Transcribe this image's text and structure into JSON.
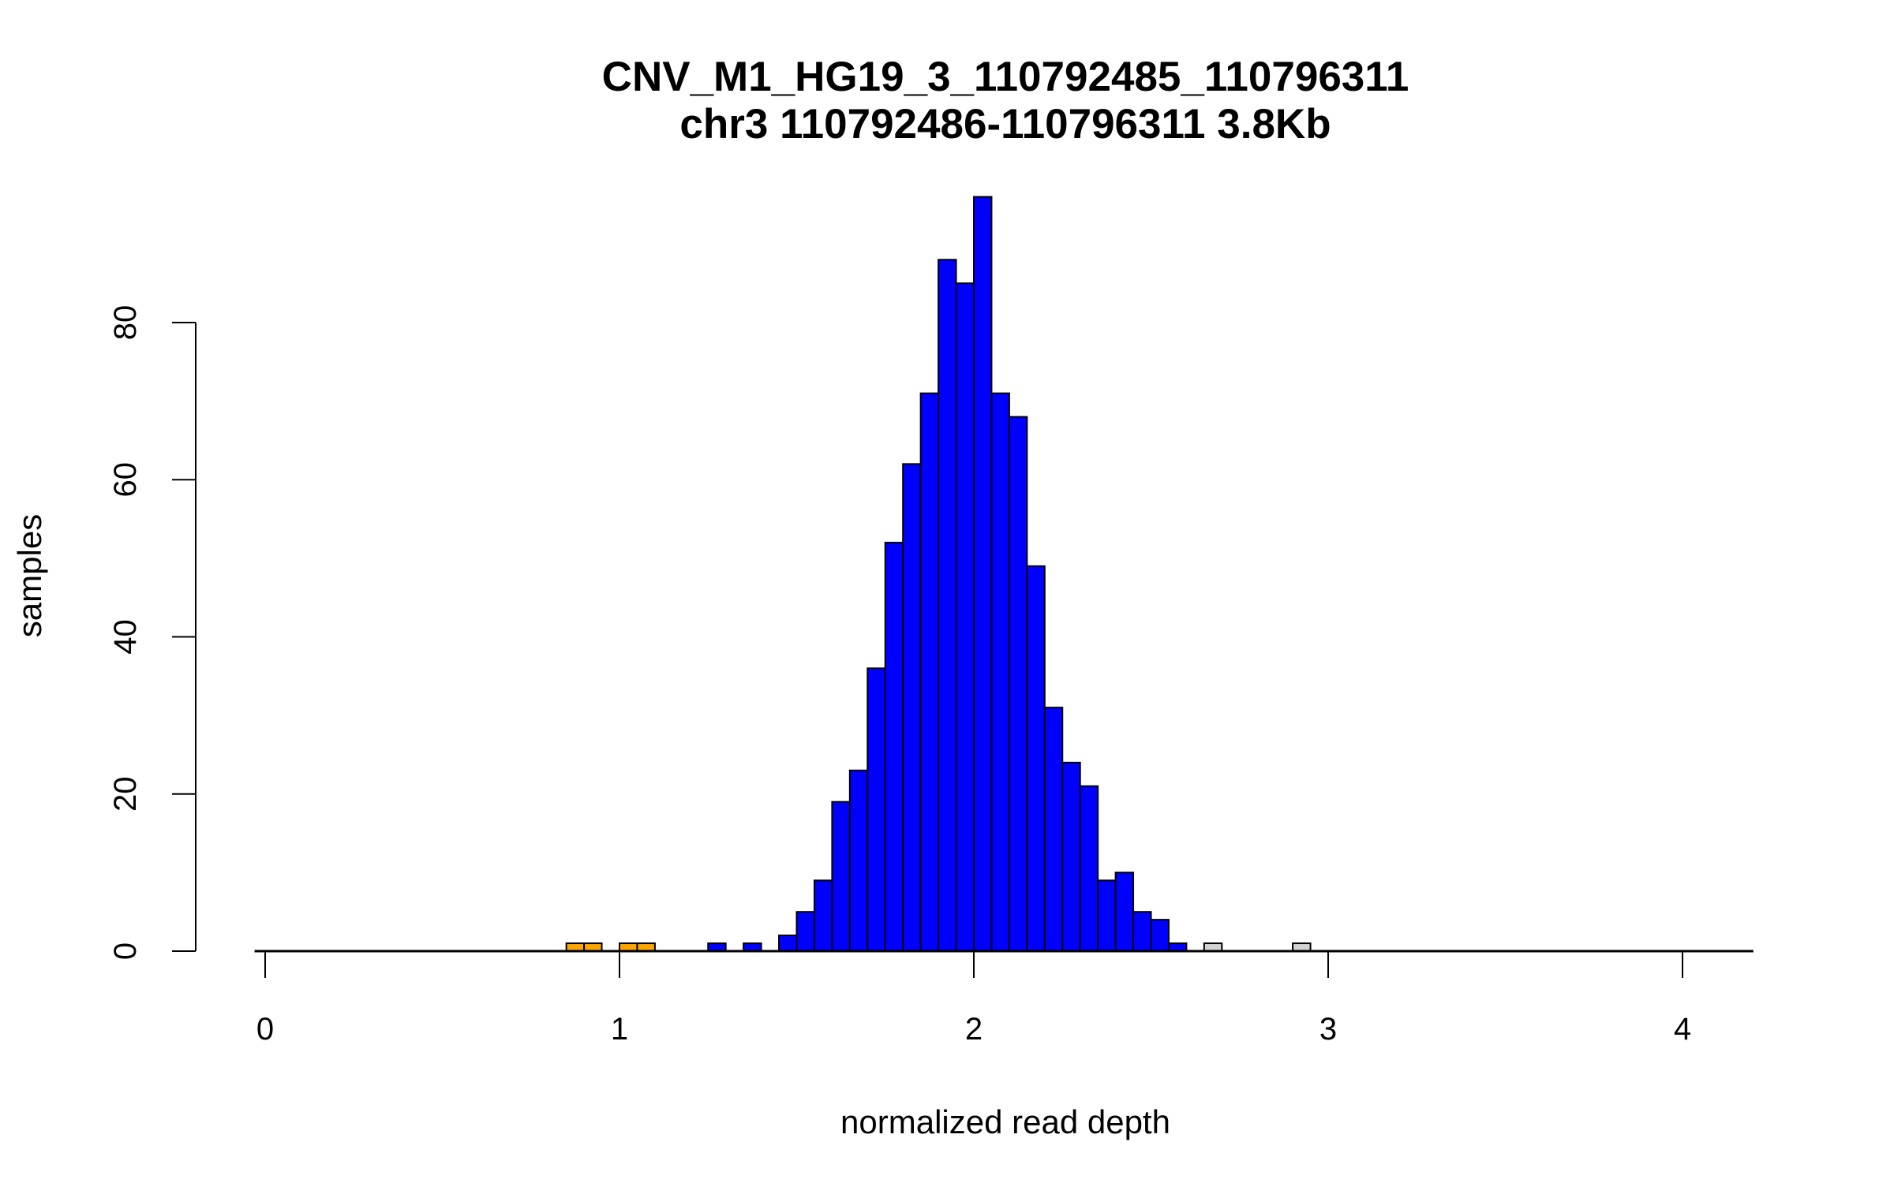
{
  "chart_data": {
    "type": "bar",
    "title": "CNV_M1_HG19_3_110792485_110796311",
    "subtitle": "chr3 110792486-110796311 3.8Kb",
    "xlabel": "normalized read depth",
    "ylabel": "samples",
    "xlim": [
      0,
      4.2
    ],
    "ylim": [
      0,
      96
    ],
    "xticks": [
      "0",
      "1",
      "2",
      "3",
      "4"
    ],
    "yticks": [
      "0",
      "20",
      "40",
      "60",
      "80"
    ],
    "bin_width": 0.05,
    "colors": {
      "deletion": "#FFA500",
      "normal": "#0000FF",
      "duplication": "#D3D3D3",
      "outline": "#000000"
    },
    "bins": [
      {
        "start": 0.85,
        "count": 1,
        "class": "deletion"
      },
      {
        "start": 0.9,
        "count": 1,
        "class": "deletion"
      },
      {
        "start": 1.0,
        "count": 1,
        "class": "deletion"
      },
      {
        "start": 1.05,
        "count": 1,
        "class": "deletion"
      },
      {
        "start": 1.25,
        "count": 1,
        "class": "normal"
      },
      {
        "start": 1.35,
        "count": 1,
        "class": "normal"
      },
      {
        "start": 1.45,
        "count": 2,
        "class": "normal"
      },
      {
        "start": 1.5,
        "count": 5,
        "class": "normal"
      },
      {
        "start": 1.55,
        "count": 9,
        "class": "normal"
      },
      {
        "start": 1.6,
        "count": 19,
        "class": "normal"
      },
      {
        "start": 1.65,
        "count": 23,
        "class": "normal"
      },
      {
        "start": 1.7,
        "count": 36,
        "class": "normal"
      },
      {
        "start": 1.75,
        "count": 52,
        "class": "normal"
      },
      {
        "start": 1.8,
        "count": 62,
        "class": "normal"
      },
      {
        "start": 1.85,
        "count": 71,
        "class": "normal"
      },
      {
        "start": 1.9,
        "count": 88,
        "class": "normal"
      },
      {
        "start": 1.95,
        "count": 85,
        "class": "normal"
      },
      {
        "start": 2.0,
        "count": 96,
        "class": "normal"
      },
      {
        "start": 2.05,
        "count": 71,
        "class": "normal"
      },
      {
        "start": 2.1,
        "count": 68,
        "class": "normal"
      },
      {
        "start": 2.15,
        "count": 49,
        "class": "normal"
      },
      {
        "start": 2.2,
        "count": 31,
        "class": "normal"
      },
      {
        "start": 2.25,
        "count": 24,
        "class": "normal"
      },
      {
        "start": 2.3,
        "count": 21,
        "class": "normal"
      },
      {
        "start": 2.35,
        "count": 9,
        "class": "normal"
      },
      {
        "start": 2.4,
        "count": 10,
        "class": "normal"
      },
      {
        "start": 2.45,
        "count": 5,
        "class": "normal"
      },
      {
        "start": 2.5,
        "count": 4,
        "class": "normal"
      },
      {
        "start": 2.55,
        "count": 1,
        "class": "normal"
      },
      {
        "start": 2.65,
        "count": 1,
        "class": "duplication"
      },
      {
        "start": 2.9,
        "count": 1,
        "class": "duplication"
      }
    ]
  }
}
